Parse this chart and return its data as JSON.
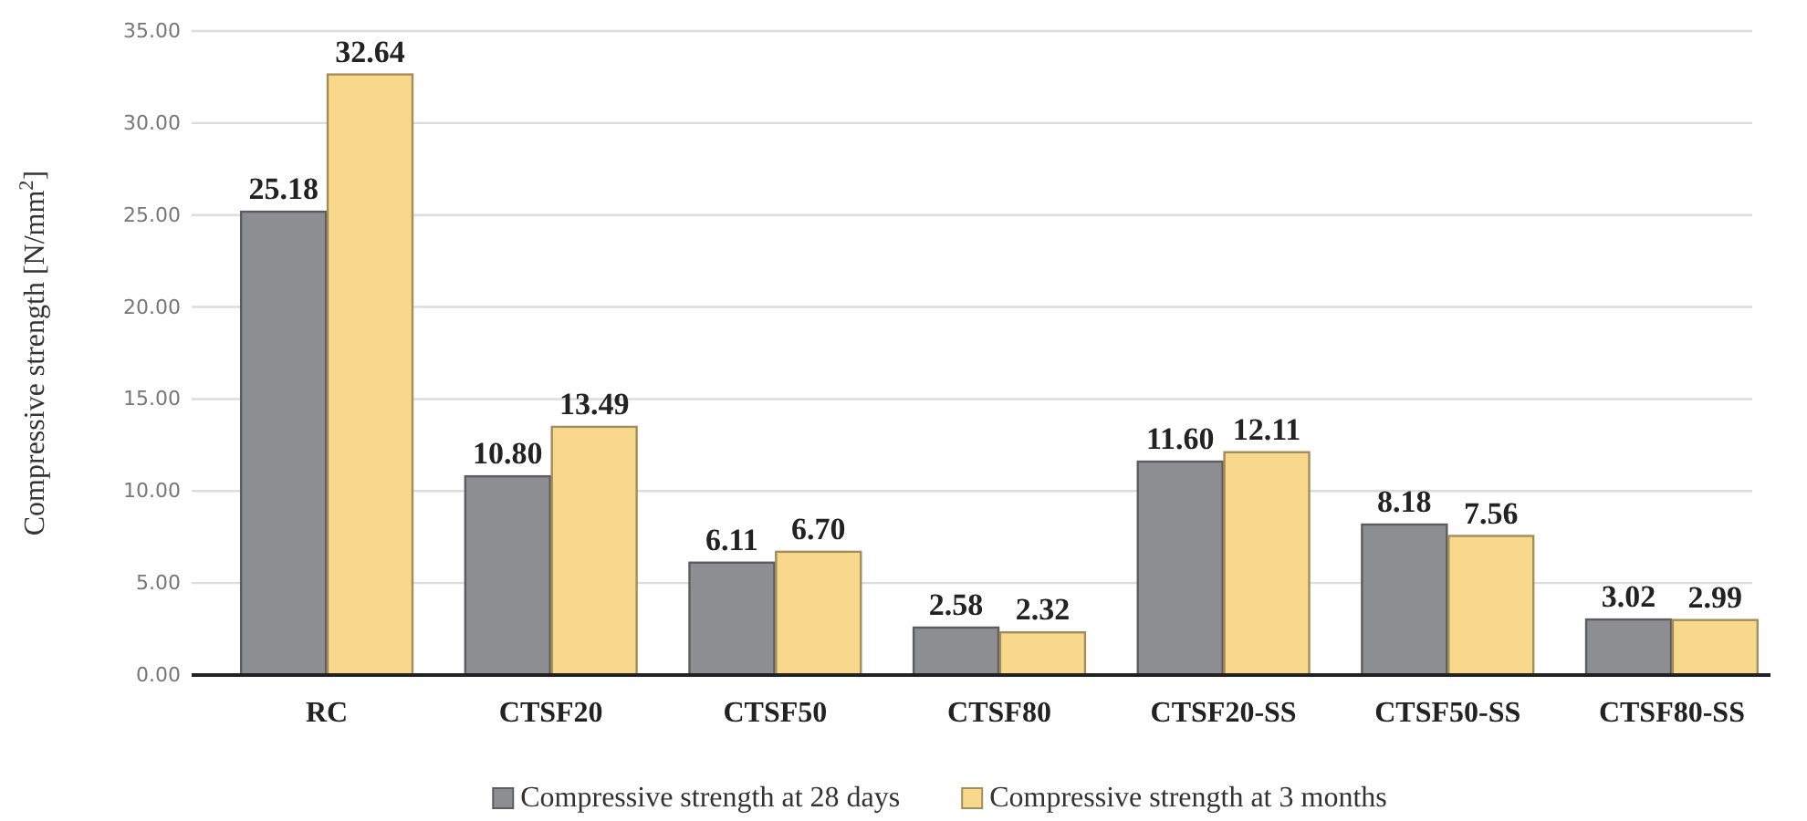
{
  "chart_data": {
    "type": "bar",
    "ylabel": "Compressive strength [N/mm$^{2}$]",
    "categories": [
      "RC",
      "CTSF20",
      "CTSF50",
      "CTSF80",
      "CTSF20-SS",
      "CTSF50-SS",
      "CTSF80-SS"
    ],
    "series": [
      {
        "name": "Compressive strength at 28 days",
        "color": "#8d8e92",
        "values": [
          25.18,
          10.8,
          6.11,
          2.58,
          11.6,
          8.18,
          3.02
        ],
        "value_labels": [
          "25.18",
          "10.80",
          "6.11",
          "2.58",
          "11.60",
          "8.18",
          "3.02"
        ]
      },
      {
        "name": "Compressive strength at 3 months",
        "color": "#f8d88b",
        "values": [
          32.64,
          13.49,
          6.7,
          2.32,
          12.11,
          7.56,
          2.99
        ],
        "value_labels": [
          "32.64",
          "13.49",
          "6.70",
          "2.32",
          "12.11",
          "7.56",
          "2.99"
        ]
      }
    ],
    "ylim": [
      0,
      35
    ],
    "yticks": [
      {
        "value": 0,
        "label": "0.00"
      },
      {
        "value": 5,
        "label": "5.00"
      },
      {
        "value": 10,
        "label": "10.00"
      },
      {
        "value": 15,
        "label": "15.00"
      },
      {
        "value": 20,
        "label": "20.00"
      },
      {
        "value": 25,
        "label": "25.00"
      },
      {
        "value": 30,
        "label": "30.00"
      },
      {
        "value": 35,
        "label": "35.00"
      }
    ],
    "grid": "y",
    "legend": "bottom"
  }
}
